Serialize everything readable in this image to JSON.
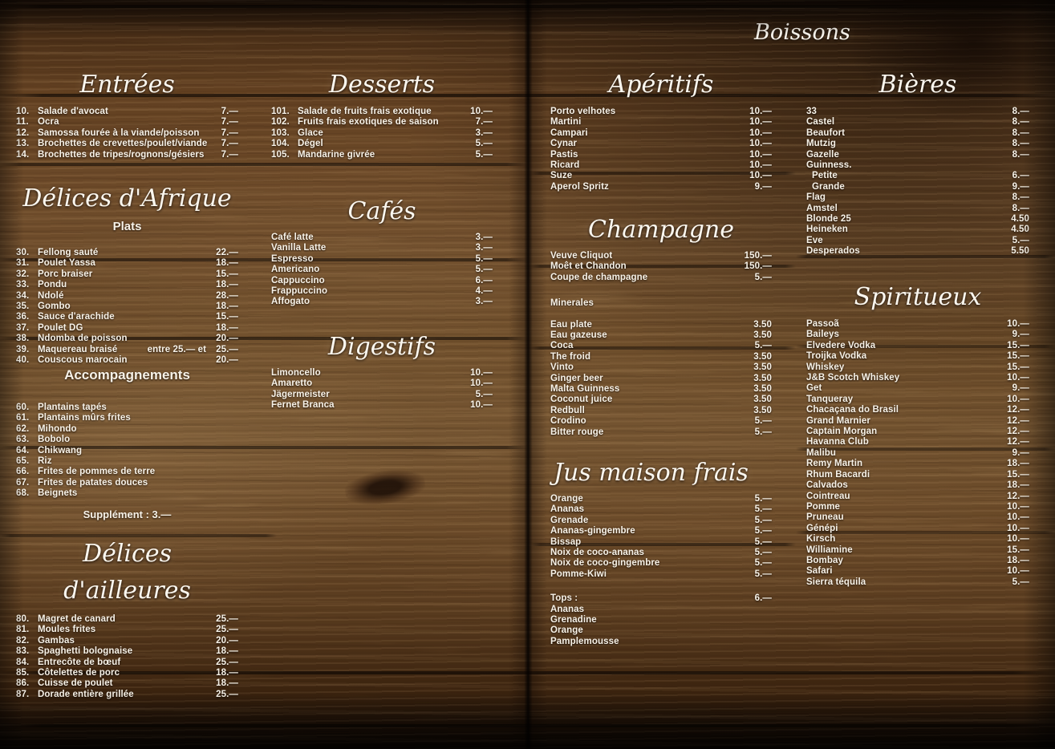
{
  "page_title": "Boissons",
  "colors": {
    "text": "#f7f2e8",
    "wood_mid": "#86613a",
    "wood_dark": "#2e1b0d",
    "plank_line": "#0c0602"
  },
  "sections": {
    "entrees": {
      "title": "Entrées",
      "items": [
        {
          "num": "10.",
          "name": "Salade d'avocat",
          "price": "7.—"
        },
        {
          "num": "11.",
          "name": "Ocra",
          "price": "7.—"
        },
        {
          "num": "12.",
          "name": "Samossa fourée à la viande/poisson",
          "price": "7.—"
        },
        {
          "num": "13.",
          "name": "Brochettes de crevettes/poulet/viande",
          "price": "7.—"
        },
        {
          "num": "14.",
          "name": "Brochettes de tripes/rognons/gésiers",
          "price": "7.—"
        }
      ]
    },
    "delices_afrique": {
      "title": "Délices d'Afrique",
      "subtitle": "Plats",
      "items": [
        {
          "num": "30.",
          "name": "Fellong sauté",
          "price": "22.—"
        },
        {
          "num": "31.",
          "name": "Poulet Yassa",
          "price": "18.—"
        },
        {
          "num": "32.",
          "name": "Porc braiser",
          "price": "15.—"
        },
        {
          "num": "33.",
          "name": "Pondu",
          "price": "18.—"
        },
        {
          "num": "34.",
          "name": "Ndolé",
          "price": "28.—"
        },
        {
          "num": "35.",
          "name": "Gombo",
          "price": "18.—"
        },
        {
          "num": "36.",
          "name": "Sauce d'arachide",
          "price": "15.—"
        },
        {
          "num": "37.",
          "name": "Poulet DG",
          "price": "18.—"
        },
        {
          "num": "38.",
          "name": "Ndomba de poisson",
          "price": "20.—"
        },
        {
          "num": "39.",
          "name": "Maquereau braisé",
          "mid": "entre 25.— et",
          "price": "25.—"
        },
        {
          "num": "40.",
          "name": "Couscous marocain",
          "price": "20.—"
        }
      ]
    },
    "accompagnements": {
      "title": "Accompagnements",
      "note": "Supplément : 3.—",
      "items": [
        {
          "num": "60.",
          "name": "Plantains tapés"
        },
        {
          "num": "61.",
          "name": "Plantains mûrs frites"
        },
        {
          "num": "62.",
          "name": "Mihondo"
        },
        {
          "num": "63.",
          "name": "Bobolo"
        },
        {
          "num": "64.",
          "name": "Chikwang"
        },
        {
          "num": "65.",
          "name": "Riz"
        },
        {
          "num": "66.",
          "name": "Frites de pommes de terre"
        },
        {
          "num": "67.",
          "name": "Frites de patates douces"
        },
        {
          "num": "68.",
          "name": "Beignets"
        }
      ]
    },
    "delices_ailleures": {
      "title": "Délices d'ailleures",
      "items": [
        {
          "num": "80.",
          "name": "Magret de canard",
          "price": "25.—"
        },
        {
          "num": "81.",
          "name": "Moules frites",
          "price": "25.—"
        },
        {
          "num": "82.",
          "name": "Gambas",
          "price": "20.—"
        },
        {
          "num": "83.",
          "name": "Spaghetti bolognaise",
          "price": "18.—"
        },
        {
          "num": "84.",
          "name": "Entrecôte de bœuf",
          "price": "25.—"
        },
        {
          "num": "85.",
          "name": "Côtelettes de porc",
          "price": "18.—"
        },
        {
          "num": "86.",
          "name": "Cuisse de poulet",
          "price": "18.—"
        },
        {
          "num": "87.",
          "name": "Dorade entière grillée",
          "price": "25.—"
        }
      ]
    },
    "desserts": {
      "title": "Desserts",
      "items": [
        {
          "num": "101.",
          "name": "Salade de fruits frais exotique",
          "price": "10.—"
        },
        {
          "num": "102.",
          "name": "Fruits frais exotiques de saison",
          "price": "7.—"
        },
        {
          "num": "103.",
          "name": "Glace",
          "price": "3.—"
        },
        {
          "num": "104.",
          "name": "Dégel",
          "price": "5.—"
        },
        {
          "num": "105.",
          "name": "Mandarine givrée",
          "price": "5.—"
        }
      ]
    },
    "cafes": {
      "title": "Cafés",
      "items": [
        {
          "name": "Café latte",
          "price": "3.—"
        },
        {
          "name": "Vanilla Latte",
          "price": "3.—"
        },
        {
          "name": "Espresso",
          "price": "5.—"
        },
        {
          "name": "Americano",
          "price": "5.—"
        },
        {
          "name": "Cappuccino",
          "price": "6.—"
        },
        {
          "name": "Frappuccino",
          "price": "4.—"
        },
        {
          "name": "Affogato",
          "price": "3.—"
        }
      ]
    },
    "digestifs": {
      "title": "Digestifs",
      "items": [
        {
          "name": "Limoncello",
          "price": "10.—"
        },
        {
          "name": "Amaretto",
          "price": "10.—"
        },
        {
          "name": "Jägermeister",
          "price": "5.—"
        },
        {
          "name": "Fernet Branca",
          "price": "10.—"
        }
      ]
    },
    "aperitifs": {
      "title": "Apéritifs",
      "items": [
        {
          "name": "Porto velhotes",
          "price": "10.—"
        },
        {
          "name": "Martini",
          "price": "10.—"
        },
        {
          "name": "Campari",
          "price": "10.—"
        },
        {
          "name": "Cynar",
          "price": "10.—"
        },
        {
          "name": "Pastis",
          "price": "10.—"
        },
        {
          "name": "Ricard",
          "price": "10.—"
        },
        {
          "name": "Suze",
          "price": "10.—"
        },
        {
          "name": "Aperol Spritz",
          "price": "9.—"
        }
      ]
    },
    "champagne": {
      "title": "Champagne",
      "items": [
        {
          "name": "Veuve Cliquot",
          "price": "150.—"
        },
        {
          "name": "Moêt et Chandon",
          "price": "150.—"
        },
        {
          "name": "Coupe de champagne",
          "price": "5.—"
        },
        {
          "name": "Minerales",
          "gap": 19
        },
        {
          "name": "Eau plate",
          "price": "3.50",
          "gap": 13
        },
        {
          "name": "Eau gazeuse",
          "price": "3.50"
        },
        {
          "name": "Coca",
          "price": "5.—"
        },
        {
          "name": "The froid",
          "price": "3.50"
        },
        {
          "name": "Vinto",
          "price": "3.50"
        },
        {
          "name": "Ginger beer",
          "price": "3.50"
        },
        {
          "name": "Malta Guinness",
          "price": "3.50"
        },
        {
          "name": "Coconut juice",
          "price": "3.50"
        },
        {
          "name": "Redbull",
          "price": "3.50"
        },
        {
          "name": "Crodino",
          "price": "5.—"
        },
        {
          "name": "Bitter rouge",
          "price": "5.—"
        }
      ]
    },
    "jus": {
      "title": "Jus maison frais",
      "items": [
        {
          "name": "Orange",
          "price": "5.—"
        },
        {
          "name": "Ananas",
          "price": "5.—"
        },
        {
          "name": "Grenade",
          "price": "5.—"
        },
        {
          "name": "Ananas-gingembre",
          "price": "5.—"
        },
        {
          "name": "Bissap",
          "price": "5.—"
        },
        {
          "name": "Noix de coco-ananas",
          "price": "5.—"
        },
        {
          "name": "Noix de coco-gingembre",
          "price": "5.—"
        },
        {
          "name": "Pomme-Kiwi",
          "price": "5.—"
        },
        {
          "name": "Tops :",
          "price": "6.—",
          "gap": 17
        },
        {
          "name": "Ananas"
        },
        {
          "name": "Grenadine"
        },
        {
          "name": "Orange"
        },
        {
          "name": "Pamplemousse"
        }
      ]
    },
    "bieres": {
      "title": "Bières",
      "items": [
        {
          "name": "33",
          "price": "8.—"
        },
        {
          "name": "Castel",
          "price": "8.—"
        },
        {
          "name": "Beaufort",
          "price": "8.—"
        },
        {
          "name": "Mutzig",
          "price": "8.—"
        },
        {
          "name": "Gazelle",
          "price": "8.—"
        },
        {
          "name": "Guinness."
        },
        {
          "name": "Petite",
          "price": "6.—",
          "indent": true
        },
        {
          "name": "Grande",
          "price": "9.—",
          "indent": true
        },
        {
          "name": "Flag",
          "price": "8.—"
        },
        {
          "name": "Amstel",
          "price": "8.—"
        },
        {
          "name": "Blonde 25",
          "price": "4.50"
        },
        {
          "name": "Heineken",
          "price": "4.50"
        },
        {
          "name": "Eve",
          "price": "5.—"
        },
        {
          "name": "Desperados",
          "price": "5.50"
        }
      ]
    },
    "spiritueux": {
      "title": "Spiritueux",
      "items": [
        {
          "name": "Passoã",
          "price": "10.—"
        },
        {
          "name": "Baileys",
          "price": "9.—"
        },
        {
          "name": "Elvedere Vodka",
          "price": "15.—"
        },
        {
          "name": "Troijka Vodka",
          "price": "15.—"
        },
        {
          "name": "Whiskey",
          "price": "15.—"
        },
        {
          "name": "J&B Scotch Whiskey",
          "price": "10.—"
        },
        {
          "name": "Get",
          "price": "9.—"
        },
        {
          "name": "Tanqueray",
          "price": "10.—"
        },
        {
          "name": "Chacaçana do Brasil",
          "price": "12.—"
        },
        {
          "name": "Grand Marnier",
          "price": "12.—"
        },
        {
          "name": "Captain Morgan",
          "price": "12.—"
        },
        {
          "name": "Havanna Club",
          "price": "12.—"
        },
        {
          "name": "Malibu",
          "price": "9.—"
        },
        {
          "name": "Remy Martin",
          "price": "18.—"
        },
        {
          "name": "Rhum Bacardi",
          "price": "15.—"
        },
        {
          "name": "Calvados",
          "price": "18.—"
        },
        {
          "name": "Cointreau",
          "price": "12.—"
        },
        {
          "name": "Pomme",
          "price": "10.—"
        },
        {
          "name": "Pruneau",
          "price": "10.—"
        },
        {
          "name": "Génépi",
          "price": "10.—"
        },
        {
          "name": "Kirsch",
          "price": "10.—"
        },
        {
          "name": "Williamine",
          "price": "15.—"
        },
        {
          "name": "Bombay",
          "price": "18.—"
        },
        {
          "name": "Safari",
          "price": "10.—"
        },
        {
          "name": "Sierra téquila",
          "price": "5.—"
        }
      ]
    }
  }
}
